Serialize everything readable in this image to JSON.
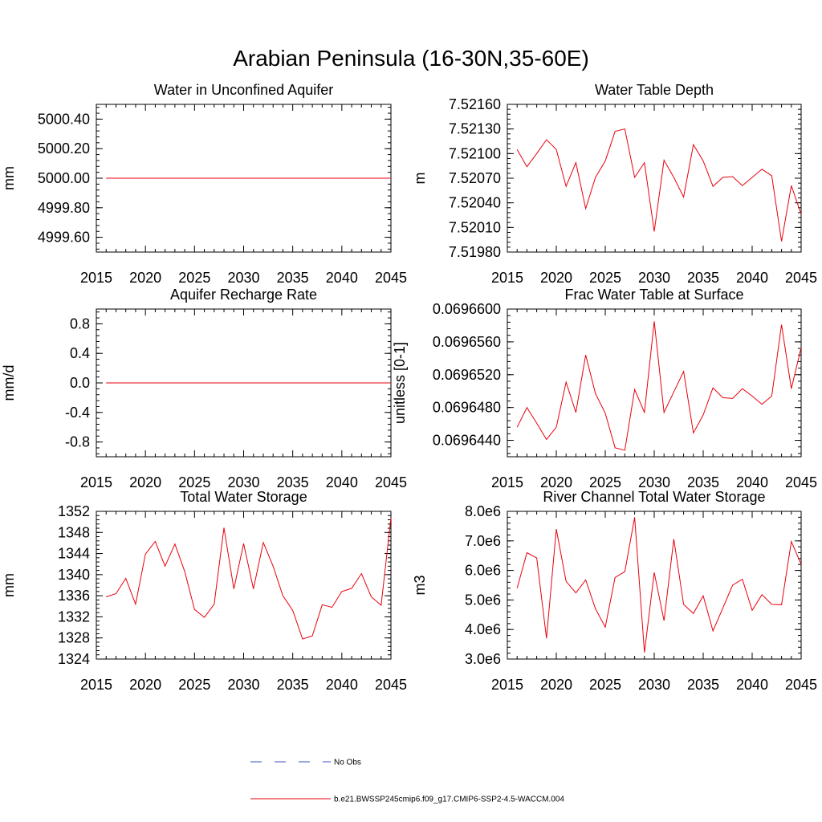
{
  "figure": {
    "title": "Arabian Peninsula (16-30N,35-60E)",
    "line_color": "#e8000b",
    "legend": {
      "no_obs_label": "No Obs",
      "no_obs_color": "#3b4cc0",
      "model_label": "b.e21.BWSSP245cmip6.f09_g17.CMIP6-SSP2-4.5-WACCM.004",
      "model_color": "#e8000b"
    }
  },
  "chart_data": [
    {
      "type": "line",
      "title": "Water in Unconfined Aquifer",
      "ylabel": "mm",
      "xlim": [
        2015,
        2045
      ],
      "ylim": [
        4999.5,
        5000.5
      ],
      "xticks": [
        2015,
        2020,
        2025,
        2030,
        2035,
        2040,
        2045
      ],
      "yticks": [
        4999.6,
        4999.8,
        5000.0,
        5000.2,
        5000.4
      ],
      "ytick_labels": [
        "4999.60",
        "4999.80",
        "5000.00",
        "5000.20",
        "5000.40"
      ],
      "x": [
        2016,
        2045
      ],
      "values": [
        5000.0,
        5000.0
      ]
    },
    {
      "type": "line",
      "title": "Water Table Depth",
      "ylabel": "m",
      "xlim": [
        2015,
        2045
      ],
      "ylim": [
        7.5198,
        7.5216
      ],
      "xticks": [
        2015,
        2020,
        2025,
        2030,
        2035,
        2040,
        2045
      ],
      "yticks": [
        7.5198,
        7.5201,
        7.5204,
        7.5207,
        7.521,
        7.5213,
        7.5216
      ],
      "ytick_labels": [
        "7.51980",
        "7.52010",
        "7.52040",
        "7.52070",
        "7.52100",
        "7.52130",
        "7.52160"
      ],
      "x": [
        2016,
        2017,
        2018,
        2019,
        2020,
        2021,
        2022,
        2023,
        2024,
        2025,
        2026,
        2027,
        2028,
        2029,
        2030,
        2031,
        2032,
        2033,
        2034,
        2035,
        2036,
        2037,
        2038,
        2039,
        2040,
        2041,
        2042,
        2043,
        2044,
        2045
      ],
      "values": [
        7.52105,
        7.52084,
        7.521,
        7.52117,
        7.52105,
        7.5206,
        7.52089,
        7.52033,
        7.52071,
        7.52091,
        7.52127,
        7.5213,
        7.52071,
        7.52089,
        7.52005,
        7.52092,
        7.52071,
        7.52047,
        7.52111,
        7.52091,
        7.5206,
        7.52071,
        7.52072,
        7.52061,
        7.52071,
        7.52081,
        7.52073,
        7.51993,
        7.52061,
        7.52026
      ]
    },
    {
      "type": "line",
      "title": "Aquifer Recharge Rate",
      "ylabel": "mm/d",
      "xlim": [
        2015,
        2045
      ],
      "ylim": [
        -1.0,
        1.0
      ],
      "xticks": [
        2015,
        2020,
        2025,
        2030,
        2035,
        2040,
        2045
      ],
      "yticks": [
        -0.8,
        -0.4,
        0.0,
        0.4,
        0.8
      ],
      "ytick_labels": [
        "-0.8",
        "-0.4",
        "0.0",
        "0.4",
        "0.8"
      ],
      "x": [
        2016,
        2045
      ],
      "values": [
        0.0,
        0.0
      ]
    },
    {
      "type": "line",
      "title": "Frac Water Table at Surface",
      "ylabel": "unitless [0-1]",
      "xlim": [
        2015,
        2045
      ],
      "ylim": [
        0.069642,
        0.06966
      ],
      "xticks": [
        2015,
        2020,
        2025,
        2030,
        2035,
        2040,
        2045
      ],
      "yticks": [
        0.069644,
        0.069648,
        0.069652,
        0.069656,
        0.06966
      ],
      "ytick_labels": [
        "0.0696440",
        "0.0696480",
        "0.0696520",
        "0.0696560",
        "0.0696600"
      ],
      "x": [
        2016,
        2017,
        2018,
        2019,
        2020,
        2021,
        2022,
        2023,
        2024,
        2025,
        2026,
        2027,
        2028,
        2029,
        2030,
        2031,
        2032,
        2033,
        2034,
        2035,
        2036,
        2037,
        2038,
        2039,
        2040,
        2041,
        2042,
        2043,
        2044,
        2045
      ],
      "values": [
        0.0696456,
        0.069648,
        0.0696461,
        0.0696441,
        0.0696456,
        0.0696511,
        0.0696474,
        0.0696544,
        0.0696497,
        0.0696473,
        0.0696431,
        0.0696428,
        0.0696502,
        0.0696474,
        0.0696585,
        0.0696474,
        0.0696499,
        0.0696524,
        0.0696449,
        0.0696471,
        0.0696504,
        0.0696492,
        0.0696491,
        0.0696503,
        0.0696494,
        0.0696484,
        0.0696494,
        0.0696581,
        0.0696503,
        0.0696553
      ]
    },
    {
      "type": "line",
      "title": "Total Water Storage",
      "ylabel": "mm",
      "xlim": [
        2015,
        2045
      ],
      "ylim": [
        1324,
        1352
      ],
      "xticks": [
        2015,
        2020,
        2025,
        2030,
        2035,
        2040,
        2045
      ],
      "yticks": [
        1324,
        1328,
        1332,
        1336,
        1340,
        1344,
        1348,
        1352
      ],
      "ytick_labels": [
        "1324",
        "1328",
        "1332",
        "1336",
        "1340",
        "1344",
        "1348",
        "1352"
      ],
      "x": [
        2016,
        2017,
        2018,
        2019,
        2020,
        2021,
        2022,
        2023,
        2024,
        2025,
        2026,
        2027,
        2028,
        2029,
        2030,
        2031,
        2032,
        2033,
        2034,
        2035,
        2036,
        2037,
        2038,
        2039,
        2040,
        2041,
        2042,
        2043,
        2044,
        2045
      ],
      "values": [
        1335.8,
        1336.4,
        1339.3,
        1334.4,
        1343.9,
        1346.3,
        1341.6,
        1345.8,
        1340.6,
        1333.4,
        1331.9,
        1334.4,
        1348.9,
        1337.3,
        1345.9,
        1337.3,
        1346.1,
        1341.6,
        1336.0,
        1333.2,
        1327.8,
        1328.4,
        1334.3,
        1333.8,
        1336.8,
        1337.4,
        1340.2,
        1335.8,
        1334.2,
        1350.8
      ]
    },
    {
      "type": "line",
      "title": "River Channel Total Water Storage",
      "ylabel": "m3",
      "xlim": [
        2015,
        2045
      ],
      "ylim": [
        3000000,
        8000000
      ],
      "xticks": [
        2015,
        2020,
        2025,
        2030,
        2035,
        2040,
        2045
      ],
      "yticks": [
        3000000,
        4000000,
        5000000,
        6000000,
        7000000,
        8000000
      ],
      "ytick_labels": [
        "3.0e6",
        "4.0e6",
        "5.0e6",
        "6.0e6",
        "7.0e6",
        "8.0e6"
      ],
      "x": [
        2016,
        2017,
        2018,
        2019,
        2020,
        2021,
        2022,
        2023,
        2024,
        2025,
        2026,
        2027,
        2028,
        2029,
        2030,
        2031,
        2032,
        2033,
        2034,
        2035,
        2036,
        2037,
        2038,
        2039,
        2040,
        2041,
        2042,
        2043,
        2044,
        2045
      ],
      "values": [
        5400000,
        6600000,
        6420000,
        3700000,
        7400000,
        5630000,
        5240000,
        5680000,
        4700000,
        4080000,
        5760000,
        5960000,
        7800000,
        3220000,
        5930000,
        4300000,
        7060000,
        4850000,
        4540000,
        5140000,
        3950000,
        4720000,
        5500000,
        5700000,
        4650000,
        5180000,
        4850000,
        4840000,
        6980000,
        6200000
      ]
    }
  ]
}
